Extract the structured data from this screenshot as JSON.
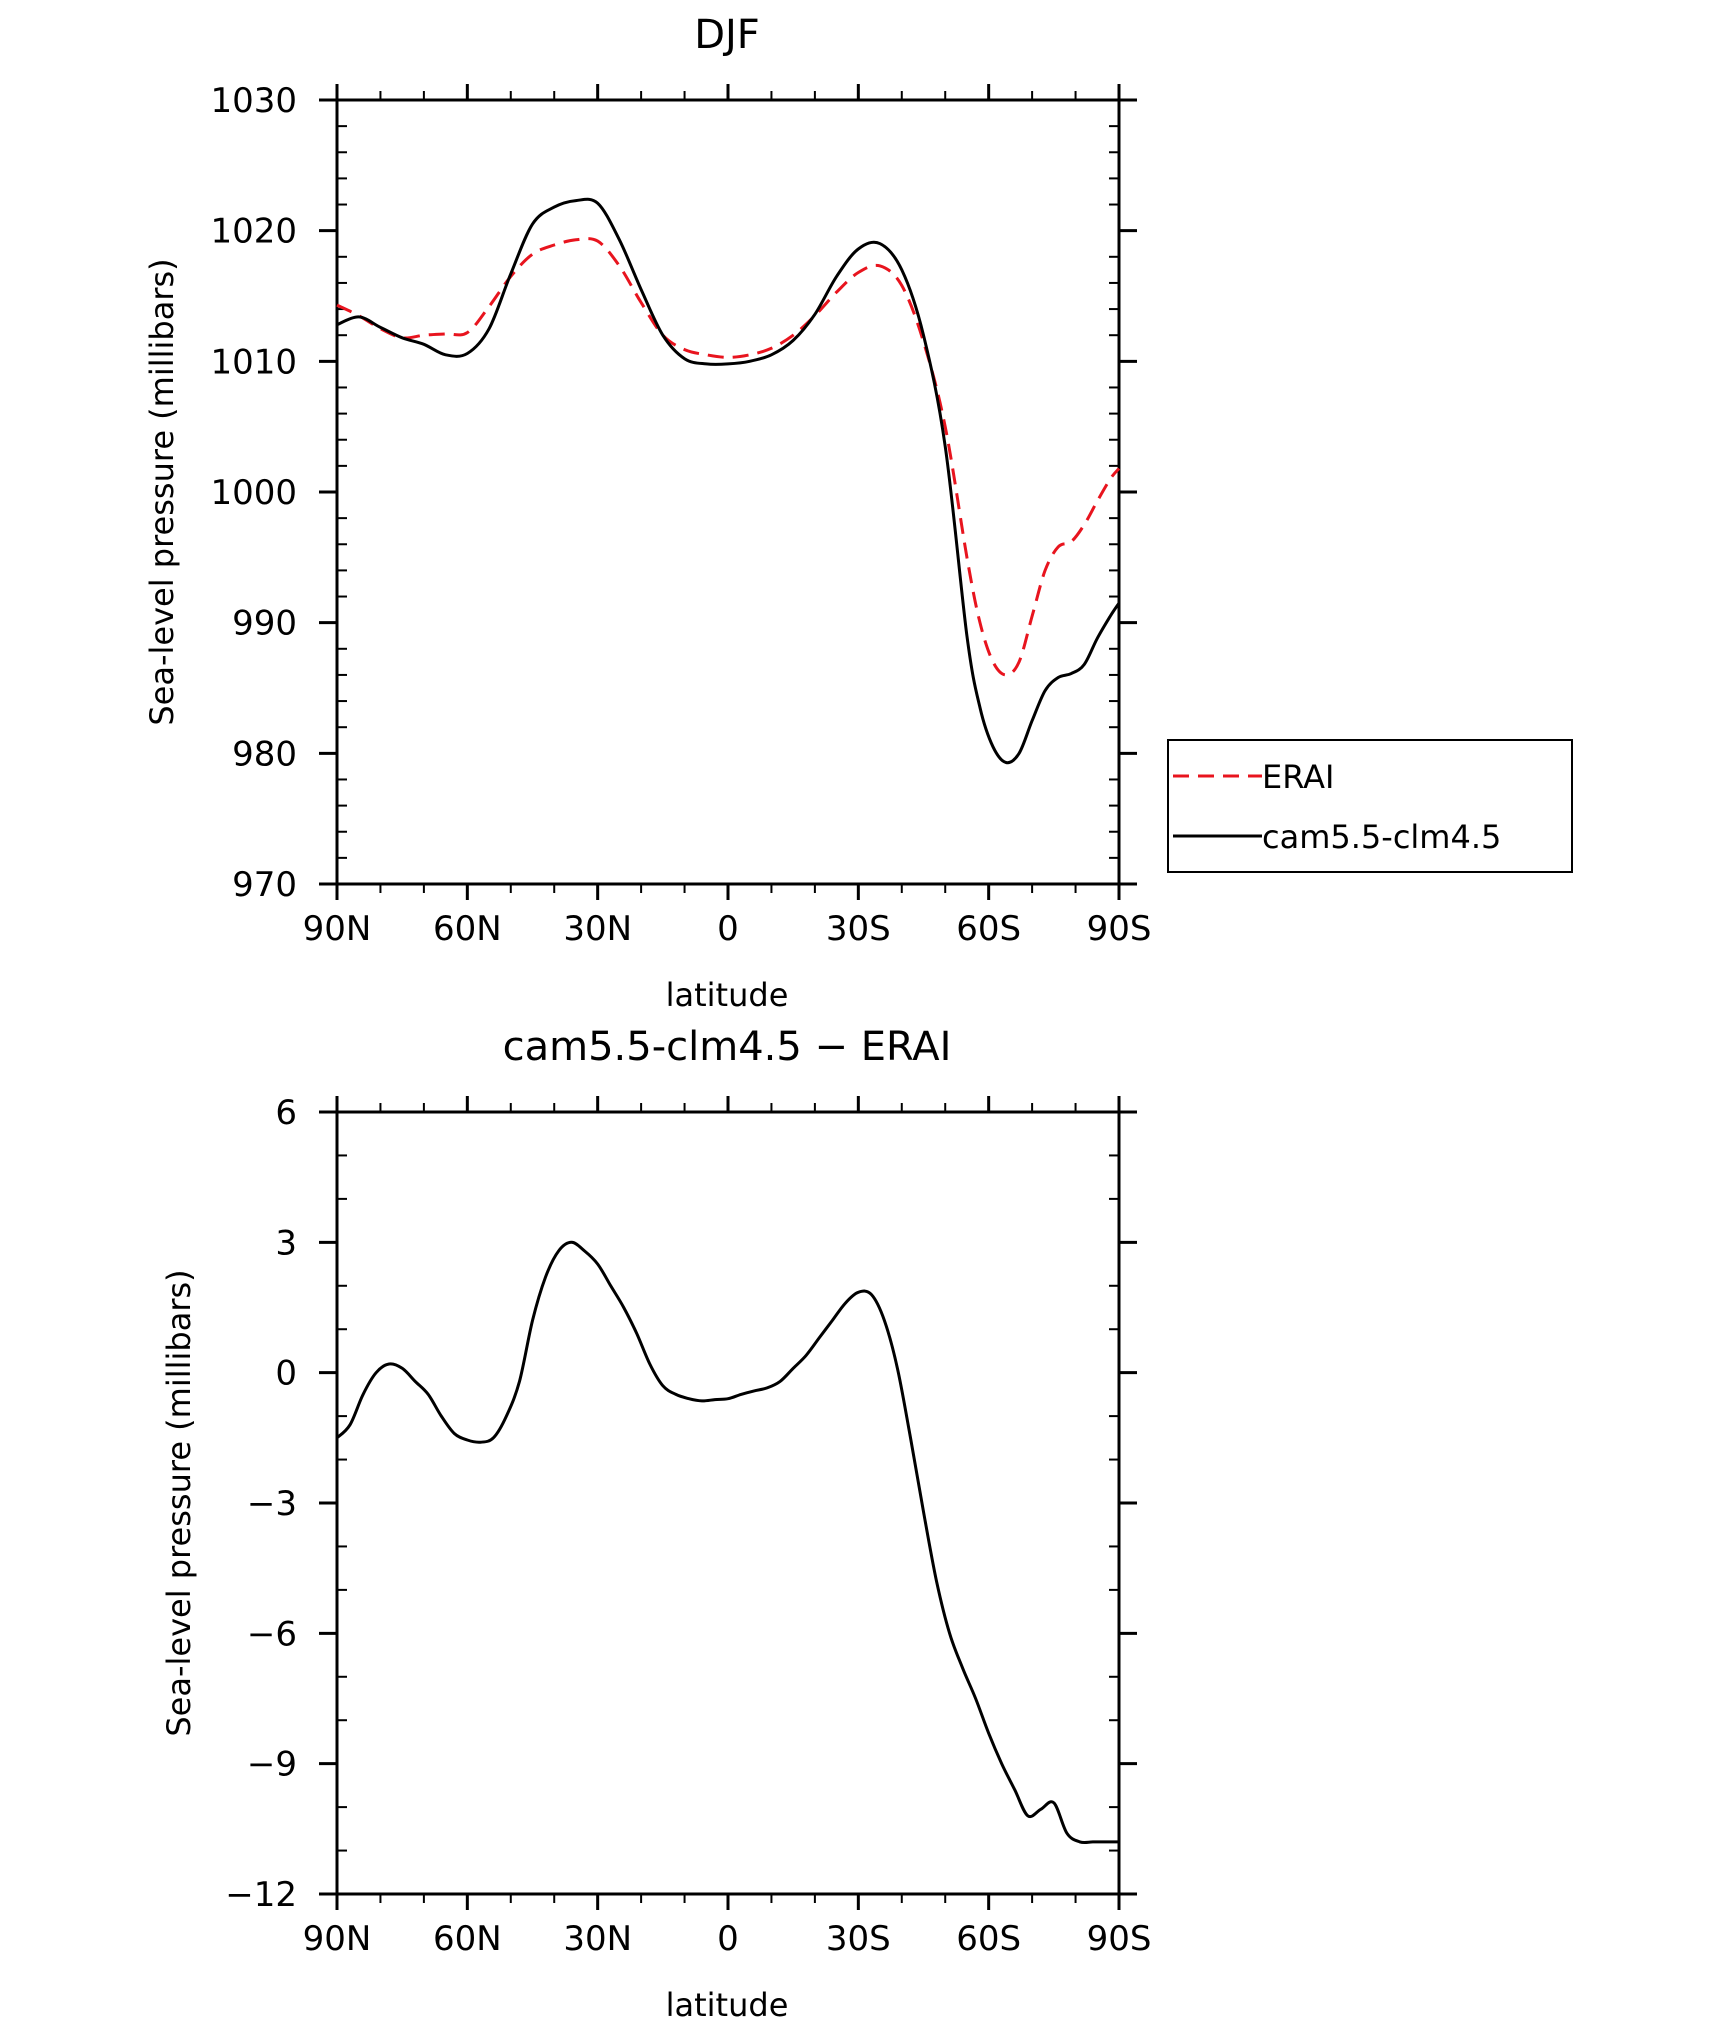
{
  "chart_data": [
    {
      "type": "line",
      "title": "DJF",
      "xlabel": "latitude",
      "ylabel": "Sea-level pressure (millibars)",
      "xlim": [
        90,
        -90
      ],
      "ylim": [
        970,
        1030
      ],
      "x_ticks": [
        90,
        60,
        30,
        0,
        -30,
        -60,
        -90
      ],
      "x_tick_labels": [
        "90N",
        "60N",
        "30N",
        "0",
        "30S",
        "60S",
        "90S"
      ],
      "y_ticks": [
        970,
        980,
        990,
        1000,
        1010,
        1020,
        1030
      ],
      "y_tick_labels": [
        "970",
        "980",
        "990",
        "1000",
        "1010",
        "1020",
        "1030"
      ],
      "legend": {
        "placement": "right"
      },
      "grid": false,
      "series": [
        {
          "name": "ERAI",
          "color": "#e8141e",
          "dash": true,
          "x": [
            90,
            85,
            80,
            75,
            70,
            65,
            60,
            55,
            50,
            45,
            40,
            35,
            30,
            25,
            20,
            15,
            10,
            5,
            0,
            -5,
            -10,
            -15,
            -20,
            -25,
            -30,
            -35,
            -40,
            -45,
            -50,
            -55,
            -58,
            -61,
            -64,
            -67,
            -70,
            -73,
            -76,
            -79,
            -82,
            -85,
            -88,
            -90
          ],
          "values": [
            1014.3,
            1013.5,
            1012.5,
            1011.8,
            1012.0,
            1012.1,
            1012.2,
            1014.2,
            1016.5,
            1018.2,
            1018.9,
            1019.3,
            1019.2,
            1017.3,
            1014.5,
            1012.0,
            1010.9,
            1010.5,
            1010.3,
            1010.5,
            1011.0,
            1012.0,
            1013.5,
            1015.3,
            1016.8,
            1017.3,
            1015.8,
            1011.5,
            1005.0,
            995.0,
            990.0,
            987.0,
            986.0,
            987.0,
            990.5,
            994.0,
            995.8,
            996.2,
            997.5,
            999.3,
            1001.0,
            1001.8
          ]
        },
        {
          "name": "cam5.5-clm4.5",
          "color": "#000000",
          "dash": false,
          "x": [
            90,
            85,
            80,
            75,
            70,
            65,
            60,
            55,
            50,
            45,
            40,
            35,
            30,
            25,
            20,
            15,
            10,
            5,
            0,
            -5,
            -10,
            -15,
            -20,
            -25,
            -30,
            -35,
            -40,
            -45,
            -50,
            -55,
            -58,
            -61,
            -64,
            -67,
            -70,
            -73,
            -76,
            -79,
            -82,
            -85,
            -88,
            -90
          ],
          "values": [
            1012.8,
            1013.4,
            1012.6,
            1011.8,
            1011.3,
            1010.5,
            1010.6,
            1012.5,
            1016.7,
            1020.5,
            1021.8,
            1022.3,
            1022.1,
            1019.3,
            1015.5,
            1012.0,
            1010.2,
            1009.8,
            1009.8,
            1010.0,
            1010.5,
            1011.6,
            1013.6,
            1016.5,
            1018.6,
            1019.0,
            1017.0,
            1012.0,
            1003.5,
            989.0,
            983.5,
            980.5,
            979.3,
            980.0,
            982.5,
            984.8,
            985.8,
            986.1,
            986.8,
            988.8,
            990.5,
            991.5
          ]
        }
      ]
    },
    {
      "type": "line",
      "title": "cam5.5-clm4.5 − ERAI",
      "xlabel": "latitude",
      "ylabel": "Sea-level pressure (millibars)",
      "xlim": [
        90,
        -90
      ],
      "ylim": [
        -12,
        6
      ],
      "x_ticks": [
        90,
        60,
        30,
        0,
        -30,
        -60,
        -90
      ],
      "x_tick_labels": [
        "90N",
        "60N",
        "30N",
        "0",
        "30S",
        "60S",
        "90S"
      ],
      "y_ticks": [
        6,
        3,
        0,
        -3,
        -6,
        -9,
        -12
      ],
      "y_tick_labels": [
        "6",
        "3",
        "0",
        "−3",
        "−6",
        "−9",
        "−12"
      ],
      "grid": false,
      "series": [
        {
          "color": "#000000",
          "dash": false,
          "x": [
            90,
            87,
            84,
            81,
            78,
            75,
            72,
            69,
            66,
            63,
            60,
            57,
            54,
            51,
            48,
            45,
            42,
            39,
            36,
            33,
            30,
            27,
            24,
            21,
            18,
            15,
            12,
            9,
            6,
            3,
            0,
            -3,
            -6,
            -9,
            -12,
            -15,
            -18,
            -21,
            -24,
            -27,
            -30,
            -33,
            -36,
            -39,
            -42,
            -45,
            -48,
            -51,
            -54,
            -57,
            -60,
            -63,
            -66,
            -69,
            -72,
            -75,
            -78,
            -81,
            -84,
            -87,
            -90
          ],
          "values": [
            -1.5,
            -1.2,
            -0.5,
            0.0,
            0.2,
            0.1,
            -0.2,
            -0.5,
            -1.0,
            -1.4,
            -1.55,
            -1.6,
            -1.5,
            -1.0,
            -0.2,
            1.2,
            2.2,
            2.8,
            3.0,
            2.8,
            2.5,
            2.0,
            1.5,
            0.9,
            0.2,
            -0.3,
            -0.5,
            -0.6,
            -0.65,
            -0.62,
            -0.6,
            -0.5,
            -0.42,
            -0.35,
            -0.2,
            0.1,
            0.4,
            0.8,
            1.2,
            1.6,
            1.85,
            1.8,
            1.2,
            0.1,
            -1.5,
            -3.2,
            -4.8,
            -6.0,
            -6.8,
            -7.5,
            -8.3,
            -9.0,
            -9.6,
            -10.2,
            -10.05,
            -9.9,
            -10.6,
            -10.8,
            -10.8,
            -10.8,
            -10.8
          ]
        }
      ]
    }
  ]
}
